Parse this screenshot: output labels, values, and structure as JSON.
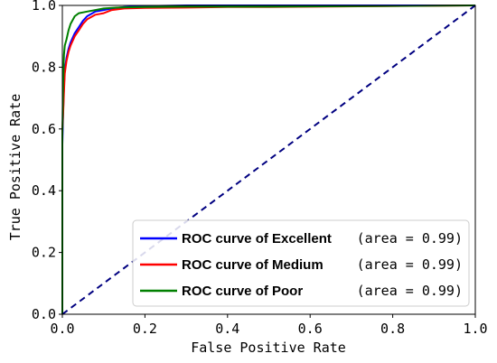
{
  "chart_data": {
    "type": "line",
    "title": "",
    "xlabel": "False Positive Rate",
    "ylabel": "True Positive Rate",
    "xlim": [
      0.0,
      1.0
    ],
    "ylim": [
      0.0,
      1.0
    ],
    "xticks": [
      "0.0",
      "0.2",
      "0.4",
      "0.6",
      "0.8",
      "1.0"
    ],
    "yticks": [
      "0.0",
      "0.2",
      "0.4",
      "0.6",
      "0.8",
      "1.0"
    ],
    "grid": false,
    "legend_position": "lower-right",
    "series": [
      {
        "name": "ROC curve of Excellent",
        "area_label": "(area = 0.99)",
        "color": "#0000ff",
        "x": [
          0.0,
          0.0,
          0.002,
          0.004,
          0.006,
          0.01,
          0.015,
          0.02,
          0.03,
          0.04,
          0.05,
          0.06,
          0.08,
          0.1,
          0.12,
          0.15,
          0.2,
          0.3,
          0.5,
          1.0
        ],
        "y": [
          0.0,
          0.55,
          0.66,
          0.74,
          0.79,
          0.83,
          0.86,
          0.88,
          0.91,
          0.93,
          0.95,
          0.965,
          0.98,
          0.985,
          0.99,
          0.995,
          0.998,
          1.0,
          1.0,
          1.0
        ]
      },
      {
        "name": "ROC curve of Medium",
        "area_label": "(area = 0.99)",
        "color": "#ff0000",
        "x": [
          0.0,
          0.0,
          0.002,
          0.004,
          0.006,
          0.01,
          0.015,
          0.02,
          0.03,
          0.04,
          0.05,
          0.06,
          0.08,
          0.1,
          0.12,
          0.15,
          0.2,
          0.3,
          0.4,
          0.5,
          1.0
        ],
        "y": [
          0.0,
          0.6,
          0.65,
          0.72,
          0.78,
          0.82,
          0.85,
          0.87,
          0.9,
          0.92,
          0.94,
          0.955,
          0.97,
          0.975,
          0.985,
          0.99,
          0.992,
          0.993,
          0.995,
          0.995,
          1.0
        ]
      },
      {
        "name": "ROC curve of Poor",
        "area_label": "(area = 0.99)",
        "color": "#008000",
        "x": [
          0.0,
          0.0,
          0.002,
          0.004,
          0.006,
          0.01,
          0.015,
          0.02,
          0.03,
          0.04,
          0.06,
          0.08,
          0.1,
          0.12,
          0.15,
          0.2,
          0.3,
          0.5,
          1.0
        ],
        "y": [
          0.0,
          0.58,
          0.75,
          0.84,
          0.87,
          0.89,
          0.92,
          0.94,
          0.965,
          0.975,
          0.98,
          0.985,
          0.99,
          0.992,
          0.994,
          0.995,
          0.996,
          0.996,
          1.0
        ]
      }
    ],
    "reference_line": {
      "x": [
        0.0,
        1.0
      ],
      "y": [
        0.0,
        1.0
      ],
      "color": "#000080",
      "style": "dashed"
    }
  }
}
